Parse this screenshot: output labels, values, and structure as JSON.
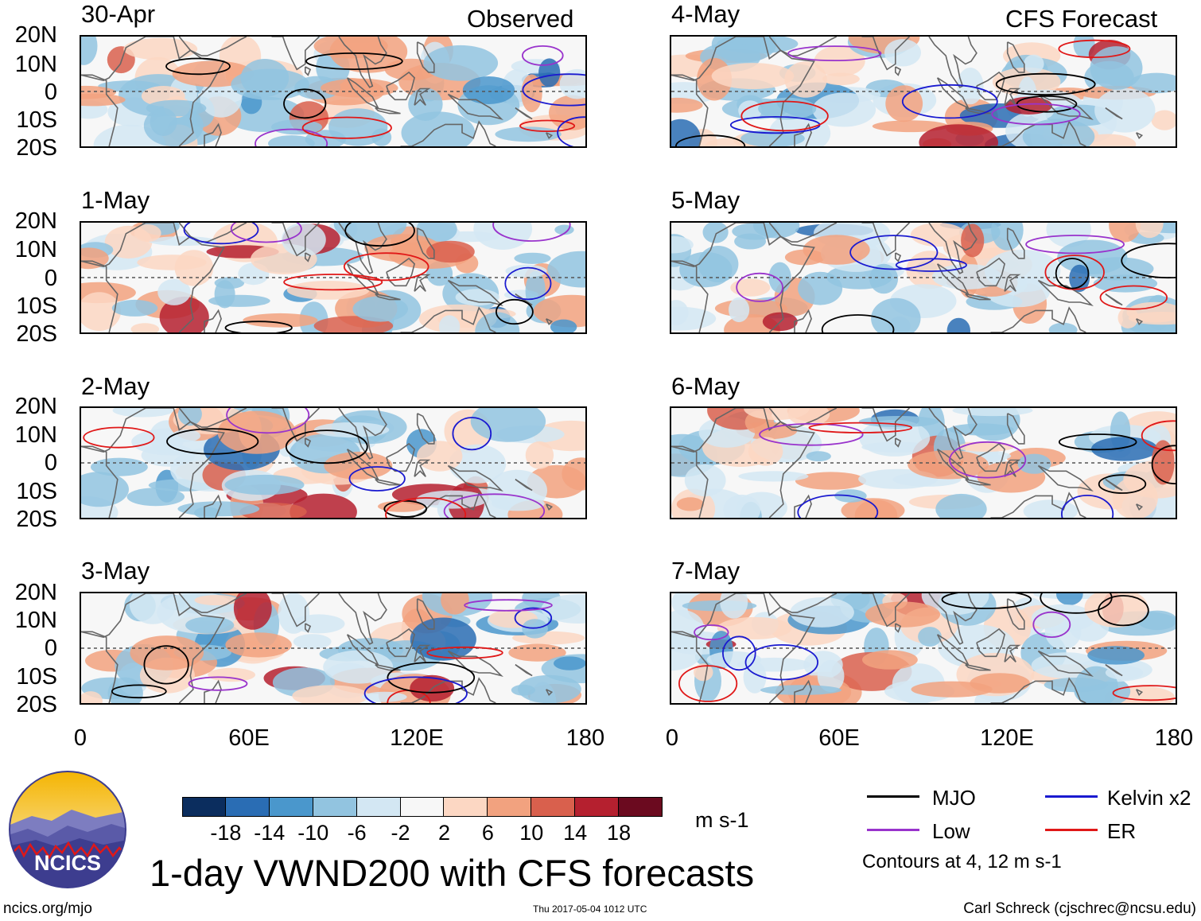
{
  "headers": {
    "observed": "Observed",
    "forecast": "CFS Forecast"
  },
  "panels": [
    {
      "date": "30-Apr",
      "column": "observed"
    },
    {
      "date": "1-May",
      "column": "observed"
    },
    {
      "date": "2-May",
      "column": "observed"
    },
    {
      "date": "3-May",
      "column": "observed"
    },
    {
      "date": "4-May",
      "column": "forecast"
    },
    {
      "date": "5-May",
      "column": "forecast"
    },
    {
      "date": "6-May",
      "column": "forecast"
    },
    {
      "date": "7-May",
      "column": "forecast"
    }
  ],
  "lat_labels": [
    "20N",
    "10N",
    "0",
    "10S",
    "20S"
  ],
  "lon_labels": [
    "0",
    "60E",
    "120E",
    "180"
  ],
  "colorbar": {
    "colors": [
      "#0b2d5e",
      "#2a6db4",
      "#4a97cc",
      "#92c4e0",
      "#d3e7f3",
      "#f7f7f7",
      "#fcd7c3",
      "#f2a27f",
      "#d9604d",
      "#b5202f",
      "#6b0a1f"
    ],
    "labels": [
      "-18",
      "-14",
      "-10",
      "-6",
      "-2",
      "2",
      "6",
      "10",
      "14",
      "18"
    ],
    "units": "m s-1"
  },
  "title": "1-day VWND200 with CFS forecasts",
  "legend": [
    {
      "label": "MJO",
      "color": "#000000"
    },
    {
      "label": "Kelvin x2",
      "color": "#1a1ad0"
    },
    {
      "label": "Low",
      "color": "#9933cc"
    },
    {
      "label": "ER",
      "color": "#e01818"
    }
  ],
  "contour_note": "Contours at 4, 12 m s-1",
  "logo_text": "NCICS",
  "footer": {
    "url": "ncics.org/mjo",
    "timestamp": "Thu 2017-05-04 1012 UTC",
    "author": "Carl Schreck (cjschrec@ncsu.edu)"
  }
}
